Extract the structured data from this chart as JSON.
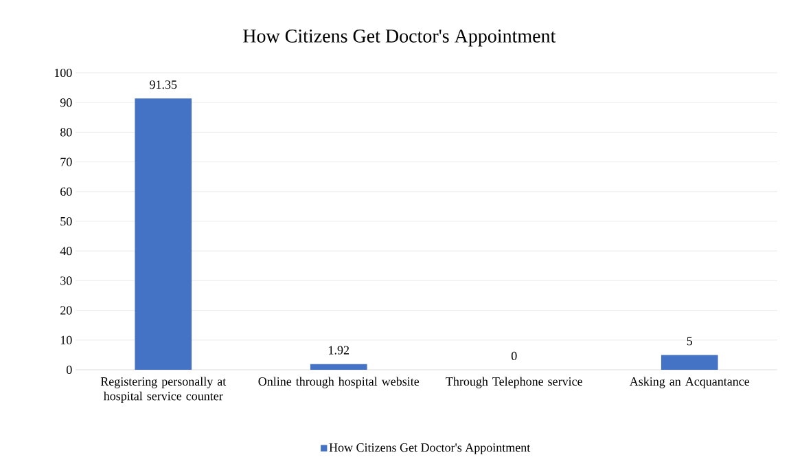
{
  "chart_data": {
    "type": "bar",
    "title": "How Citizens Get Doctor's Appointment",
    "categories": [
      "Registering personally at hospital service counter",
      "Online through hospital website",
      "Through Telephone service",
      "Asking an Acquantance"
    ],
    "series": [
      {
        "name": "How Citizens Get Doctor's Appointment",
        "color": "#4472c4",
        "values": [
          91.35,
          1.92,
          0,
          5
        ]
      }
    ],
    "ylim": [
      0,
      100
    ],
    "yticks": [
      0,
      10,
      20,
      30,
      40,
      50,
      60,
      70,
      80,
      90,
      100
    ],
    "grid": "y",
    "legend": "bottom",
    "data_labels": true
  }
}
